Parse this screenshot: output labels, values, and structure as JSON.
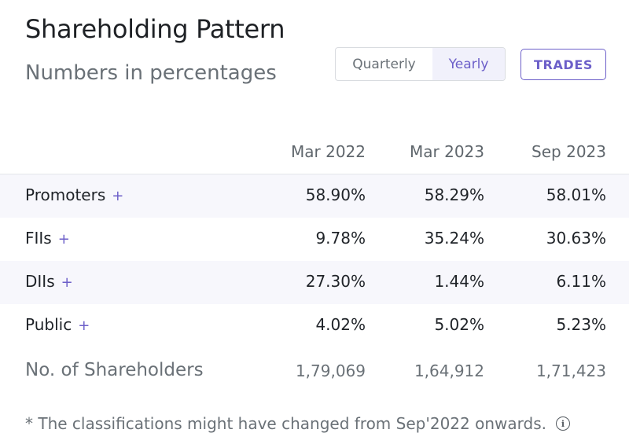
{
  "header": {
    "title": "Shareholding Pattern",
    "subtitle": "Numbers in percentages"
  },
  "toggle": {
    "options": [
      "Quarterly",
      "Yearly"
    ],
    "selected": "Yearly"
  },
  "trades_button": "TRADES",
  "table": {
    "columns": [
      "Mar 2022",
      "Mar 2023",
      "Sep 2023"
    ],
    "rows": [
      {
        "label": "Promoters",
        "expand": "+",
        "values": [
          "58.90%",
          "58.29%",
          "58.01%"
        ]
      },
      {
        "label": "FIIs",
        "expand": "+",
        "values": [
          "9.78%",
          "35.24%",
          "30.63%"
        ]
      },
      {
        "label": "DIIs",
        "expand": "+",
        "values": [
          "27.30%",
          "1.44%",
          "6.11%"
        ]
      },
      {
        "label": "Public",
        "expand": "+",
        "values": [
          "4.02%",
          "5.02%",
          "5.23%"
        ]
      }
    ],
    "shareholders": {
      "label": "No. of Shareholders",
      "values": [
        "1,79,069",
        "1,64,912",
        "1,71,423"
      ]
    }
  },
  "footnote": "* The classifications might have changed from Sep'2022 onwards.",
  "colors": {
    "accent": "#6c5fc9",
    "row_alt": "#f7f7fc",
    "muted_text": "#6a7177"
  },
  "icons": {
    "footnote_info": "info-icon"
  }
}
